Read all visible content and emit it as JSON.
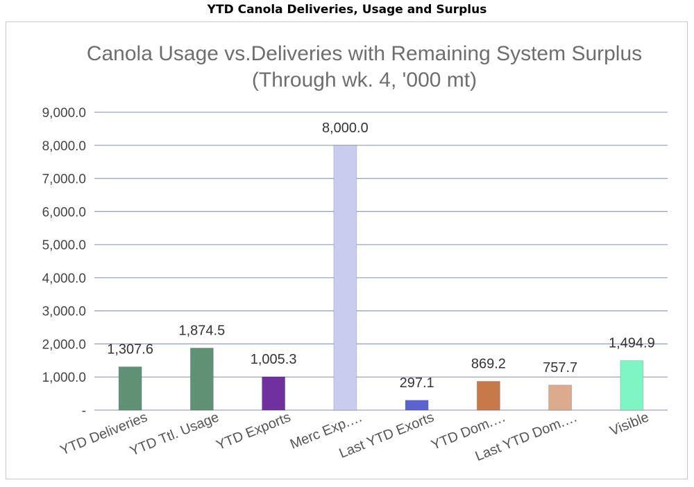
{
  "header": {
    "title": "YTD Canola Deliveries, Usage and Surplus"
  },
  "chart_data": {
    "type": "bar",
    "title": "Canola Usage vs.Deliveries with Remaining System Surplus",
    "subtitle": "(Through wk. 4,  '000 mt)",
    "categories": [
      "YTD Deliveries",
      "YTD Ttl. Usage",
      "YTD Exports",
      "Merc Exp.…",
      "Last YTD Exorts",
      "YTD Dom.…",
      "Last YTD Dom.…",
      "Visible"
    ],
    "values": [
      1307.6,
      1874.5,
      1005.3,
      8000.0,
      297.1,
      869.2,
      757.7,
      1494.9
    ],
    "value_labels": [
      "1,307.6",
      "1,874.5",
      "1,005.3",
      "8,000.0",
      "297.1",
      "869.2",
      "757.7",
      "1,494.9"
    ],
    "bar_colors": [
      "#5f9275",
      "#5f9275",
      "#7130a0",
      "#c8ccee",
      "#5b63d0",
      "#c8794a",
      "#dcab8e",
      "#7ff5c3"
    ],
    "ylim": [
      0,
      9000
    ],
    "yticks": [
      0,
      1000,
      2000,
      3000,
      4000,
      5000,
      6000,
      7000,
      8000,
      9000
    ],
    "ytick_labels": [
      "-",
      "1,000.0",
      "2,000.0",
      "3,000.0",
      "4,000.0",
      "5,000.0",
      "6,000.0",
      "7,000.0",
      "8,000.0",
      "9,000.0"
    ],
    "xlabel": "",
    "ylabel": "",
    "grid": true,
    "grid_color": "#9aa5b8"
  }
}
